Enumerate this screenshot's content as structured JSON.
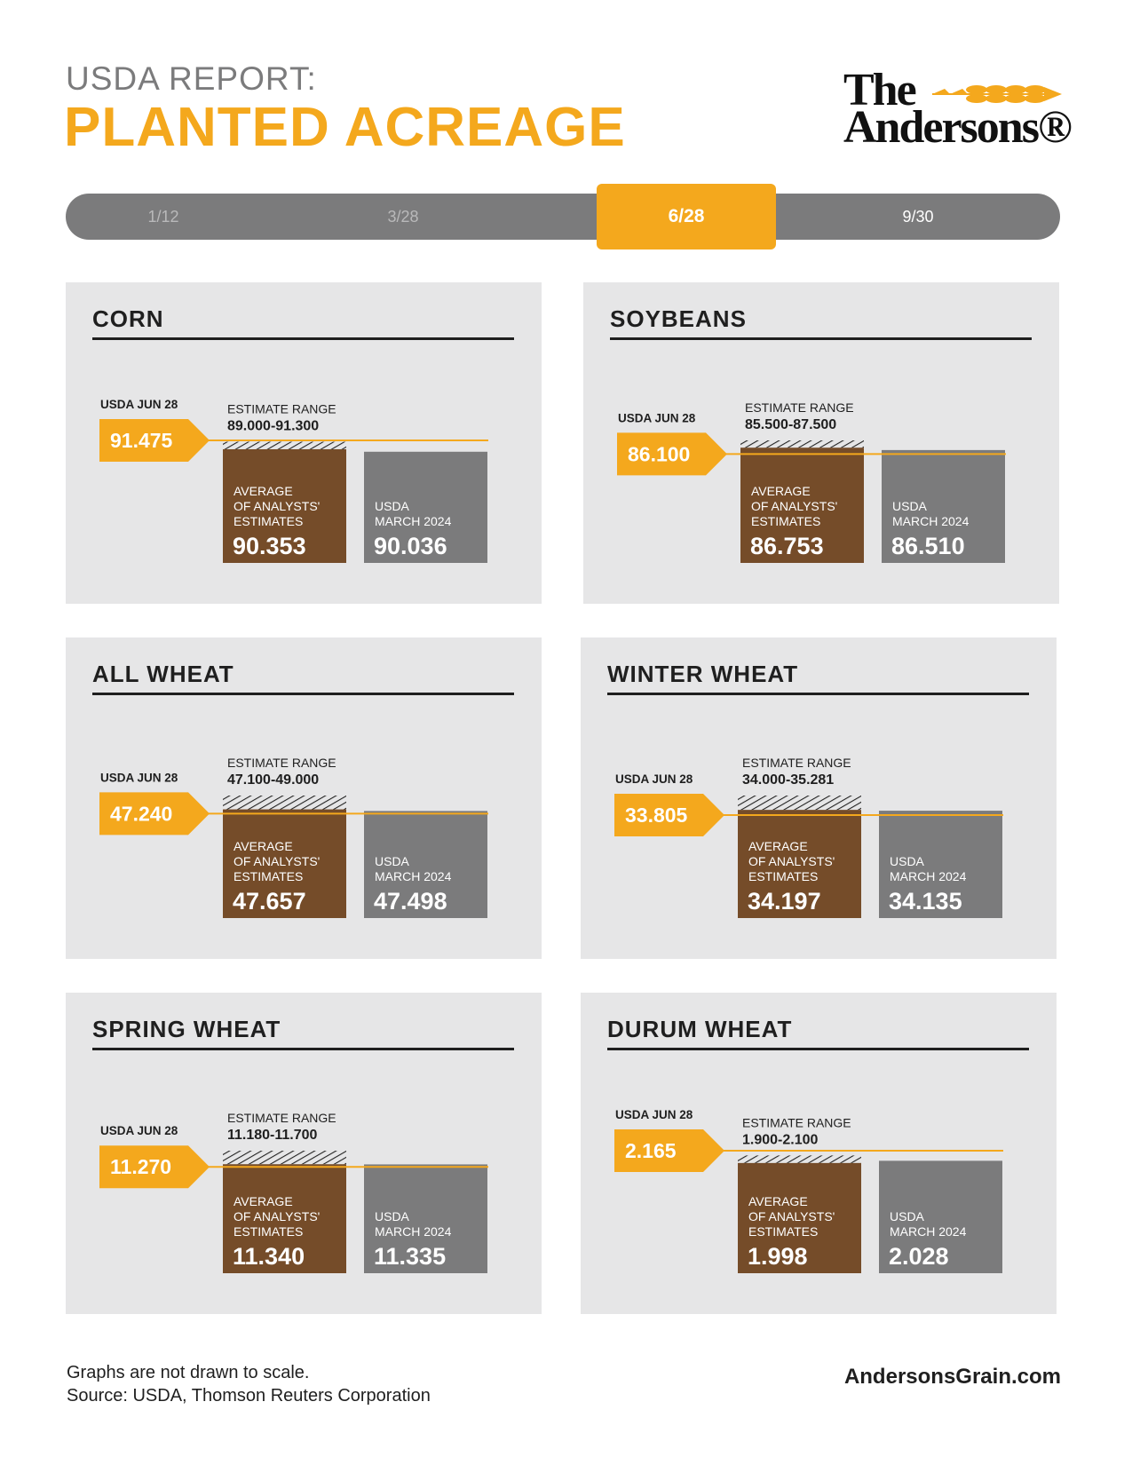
{
  "header": {
    "subtitle": "USDA REPORT:",
    "title": "PLANTED ACREAGE"
  },
  "logo": {
    "line1": "The",
    "line2": "Andersons®"
  },
  "timeline": {
    "items": [
      "1/12",
      "3/28",
      "6/28",
      "9/30"
    ],
    "active_index": 2
  },
  "colors": {
    "accent": "#f4a81d",
    "brown": "#754c29",
    "gray": "#7b7b7c",
    "panel": "#e6e6e7"
  },
  "chart_data": [
    {
      "type": "bar",
      "title": "CORN",
      "usda_label": "USDA JUN 28",
      "usda_value": "91.475",
      "range_label": "ESTIMATE RANGE",
      "range_value": "89.000-91.300",
      "categories": [
        "AVERAGE OF ANALYSTS' ESTIMATES",
        "USDA MARCH 2024"
      ],
      "values": [
        90.353,
        90.036
      ],
      "value_labels": [
        "90.353",
        "90.036"
      ],
      "range": [
        89.0,
        91.3
      ],
      "usda_jun": 91.475
    },
    {
      "type": "bar",
      "title": "SOYBEANS",
      "usda_label": "USDA JUN 28",
      "usda_value": "86.100",
      "range_label": "ESTIMATE RANGE",
      "range_value": "85.500-87.500",
      "categories": [
        "AVERAGE OF ANALYSTS' ESTIMATES",
        "USDA MARCH 2024"
      ],
      "values": [
        86.753,
        86.51
      ],
      "value_labels": [
        "86.753",
        "86.510"
      ],
      "range": [
        85.5,
        87.5
      ],
      "usda_jun": 86.1
    },
    {
      "type": "bar",
      "title": "ALL WHEAT",
      "usda_label": "USDA JUN 28",
      "usda_value": "47.240",
      "range_label": "ESTIMATE RANGE",
      "range_value": "47.100-49.000",
      "categories": [
        "AVERAGE OF ANALYSTS' ESTIMATES",
        "USDA MARCH 2024"
      ],
      "values": [
        47.657,
        47.498
      ],
      "value_labels": [
        "47.657",
        "47.498"
      ],
      "range": [
        47.1,
        49.0
      ],
      "usda_jun": 47.24
    },
    {
      "type": "bar",
      "title": "WINTER WHEAT",
      "usda_label": "USDA JUN 28",
      "usda_value": "33.805",
      "range_label": "ESTIMATE RANGE",
      "range_value": "34.000-35.281",
      "categories": [
        "AVERAGE OF ANALYSTS' ESTIMATES",
        "USDA MARCH 2024"
      ],
      "values": [
        34.197,
        34.135
      ],
      "value_labels": [
        "34.197",
        "34.135"
      ],
      "range": [
        34.0,
        35.281
      ],
      "usda_jun": 33.805
    },
    {
      "type": "bar",
      "title": "SPRING WHEAT",
      "usda_label": "USDA JUN 28",
      "usda_value": "11.270",
      "range_label": "ESTIMATE RANGE",
      "range_value": "11.180-11.700",
      "categories": [
        "AVERAGE OF ANALYSTS' ESTIMATES",
        "USDA MARCH 2024"
      ],
      "values": [
        11.34,
        11.335
      ],
      "value_labels": [
        "11.340",
        "11.335"
      ],
      "range": [
        11.18,
        11.7
      ],
      "usda_jun": 11.27
    },
    {
      "type": "bar",
      "title": "DURUM WHEAT",
      "usda_label": "USDA JUN 28",
      "usda_value": "2.165",
      "range_label": "ESTIMATE RANGE",
      "range_value": "1.900-2.100",
      "categories": [
        "AVERAGE OF ANALYSTS' ESTIMATES",
        "USDA MARCH 2024"
      ],
      "values": [
        1.998,
        2.028
      ],
      "value_labels": [
        "1.998",
        "2.028"
      ],
      "range": [
        1.9,
        2.1
      ],
      "usda_jun": 2.165
    }
  ],
  "bar_labels": {
    "average_lines": [
      "AVERAGE",
      "OF ANALYSTS'",
      "ESTIMATES"
    ],
    "usda_march_lines": [
      "USDA",
      "MARCH 2024"
    ]
  },
  "footer": {
    "note_line1": "Graphs are not drawn to scale.",
    "note_line2": "Source: USDA, Thomson Reuters Corporation",
    "site": "AndersonsGrain.com"
  }
}
